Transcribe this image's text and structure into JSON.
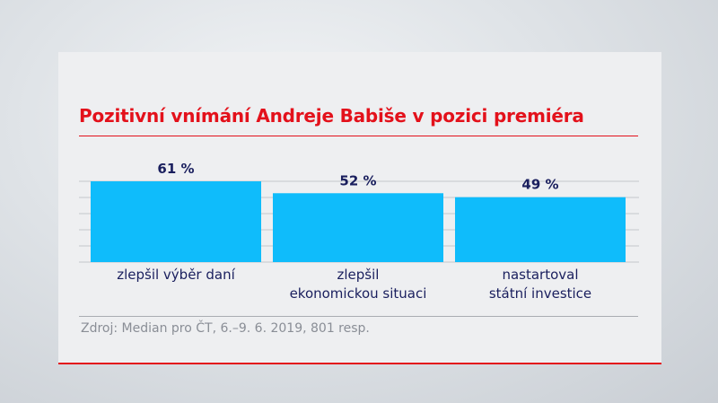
{
  "chart_data": {
    "type": "bar",
    "title": "Pozitivní vnímání Andreje Babiše v pozici premiéra",
    "categories": [
      [
        "zlepšil výběr daní"
      ],
      [
        "zlepšil",
        "ekonomickou situaci"
      ],
      [
        "nastartoval",
        "státní investice"
      ]
    ],
    "values": [
      61,
      52,
      49
    ],
    "value_labels": [
      "61 %",
      "52 %",
      "49 %"
    ],
    "ylim": [
      0,
      61
    ],
    "grid": true,
    "bar_color": "#0fbcfb",
    "xlabel": "",
    "ylabel": ""
  },
  "source": "Zdroj: Median pro ČT, 6.–9. 6. 2019, 801 resp.",
  "colors": {
    "accent": "#e3111b",
    "label": "#1a1f5e"
  }
}
